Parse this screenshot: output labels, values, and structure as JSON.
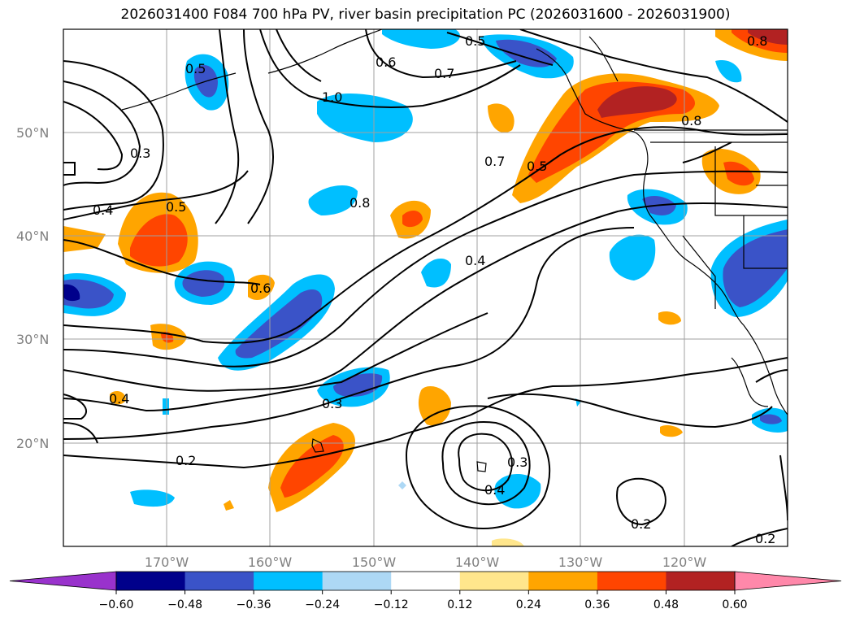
{
  "title": "2026031400 F084 700 hPa PV, river basin precipitation PC (2026031600 - 2026031900)",
  "lat_ticks": [
    "50°N",
    "40°N",
    "30°N",
    "20°N"
  ],
  "lon_ticks": [
    "170°W",
    "160°W",
    "150°W",
    "140°W",
    "130°W",
    "120°W"
  ],
  "colorbar": {
    "ticks": [
      "−0.60",
      "−0.48",
      "−0.36",
      "−0.24",
      "−0.12",
      "0.12",
      "0.24",
      "0.36",
      "0.48",
      "0.60"
    ],
    "colors": [
      "#9932cc",
      "#00008b",
      "#3a53c8",
      "#00bfff",
      "#add8f5",
      "#ffffff",
      "#ffe68c",
      "#ffa500",
      "#ff4500",
      "#b22222",
      "#ff88aa"
    ]
  },
  "contour_labels": [
    "0.5",
    "0.6",
    "0.7",
    "0.8",
    "1.0",
    "0.5",
    "0.8",
    "0.3",
    "0.4",
    "0.5",
    "0.7",
    "0.5",
    "0.8",
    "0.6",
    "0.4",
    "0.4",
    "0.3",
    "0.2",
    "0.3",
    "0.4",
    "0.2",
    "0.2"
  ],
  "chart_data": {
    "type": "map",
    "lat_range": [
      10,
      60
    ],
    "lon_range": [
      -180,
      -110
    ],
    "contour_field": "700 hPa PV",
    "shading_field": "river basin precipitation PC",
    "contour_levels": [
      0.2,
      0.3,
      0.4,
      0.5,
      0.6,
      0.7,
      0.8,
      1.0
    ]
  }
}
